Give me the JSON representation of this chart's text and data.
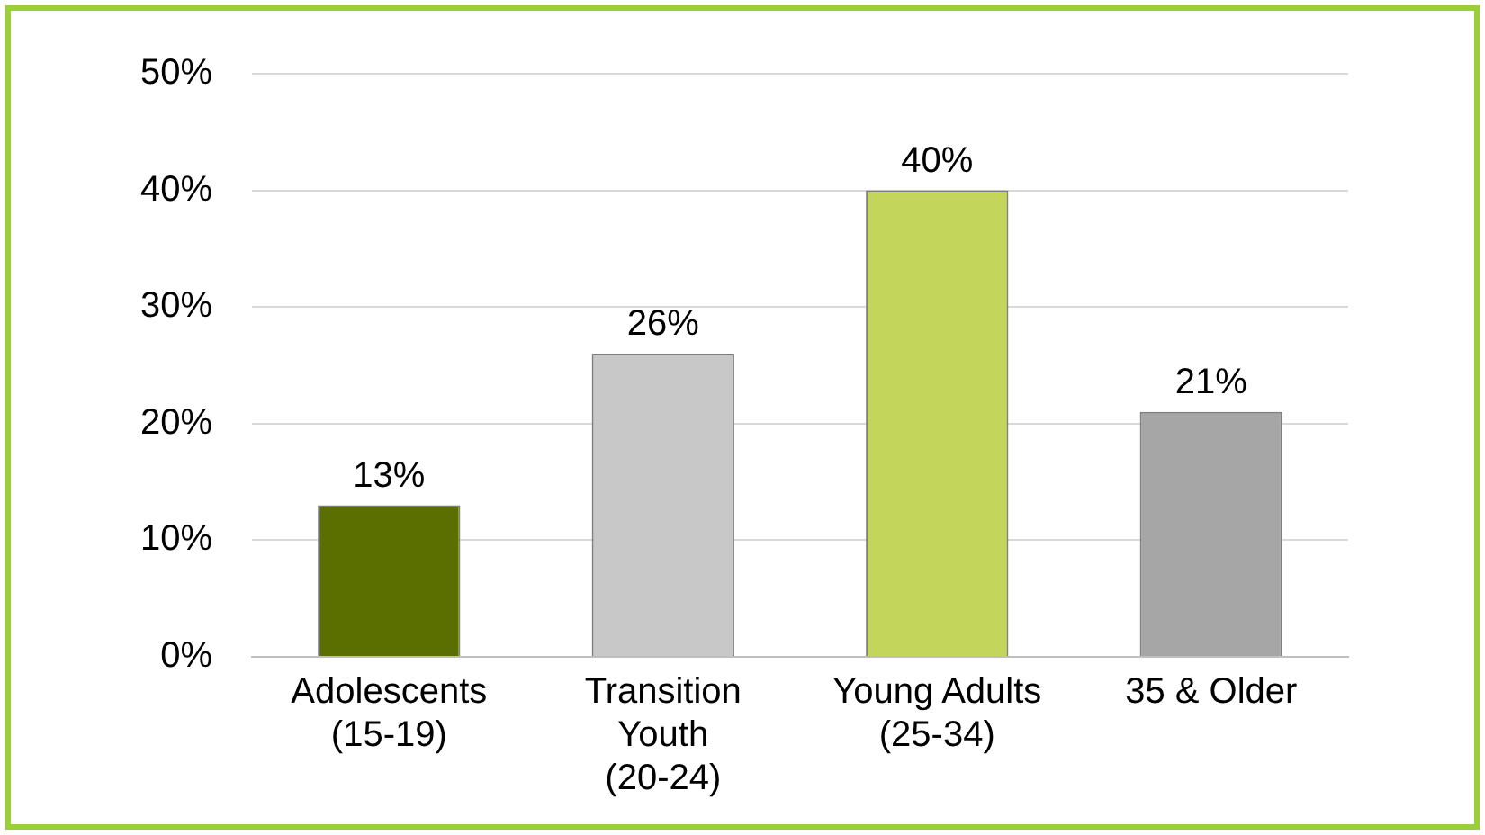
{
  "chart_data": {
    "type": "bar",
    "categories": [
      "Adolescents\n(15-19)",
      "Transition\nYouth\n(20-24)",
      "Young Adults\n(25-34)",
      "35 & Older"
    ],
    "values": [
      13,
      26,
      40,
      21
    ],
    "colors": [
      "#5b6f00",
      "#c8c8c8",
      "#c3d55a",
      "#a6a6a6"
    ],
    "value_labels": [
      "13%",
      "26%",
      "40%",
      "21%"
    ],
    "ylim": [
      0,
      50
    ],
    "yticks": [
      {
        "value": 0,
        "label": "0%"
      },
      {
        "value": 10,
        "label": "10%"
      },
      {
        "value": 20,
        "label": "20%"
      },
      {
        "value": 30,
        "label": "30%"
      },
      {
        "value": 40,
        "label": "40%"
      },
      {
        "value": 50,
        "label": "50%"
      }
    ],
    "grid": "y",
    "legend": false
  }
}
